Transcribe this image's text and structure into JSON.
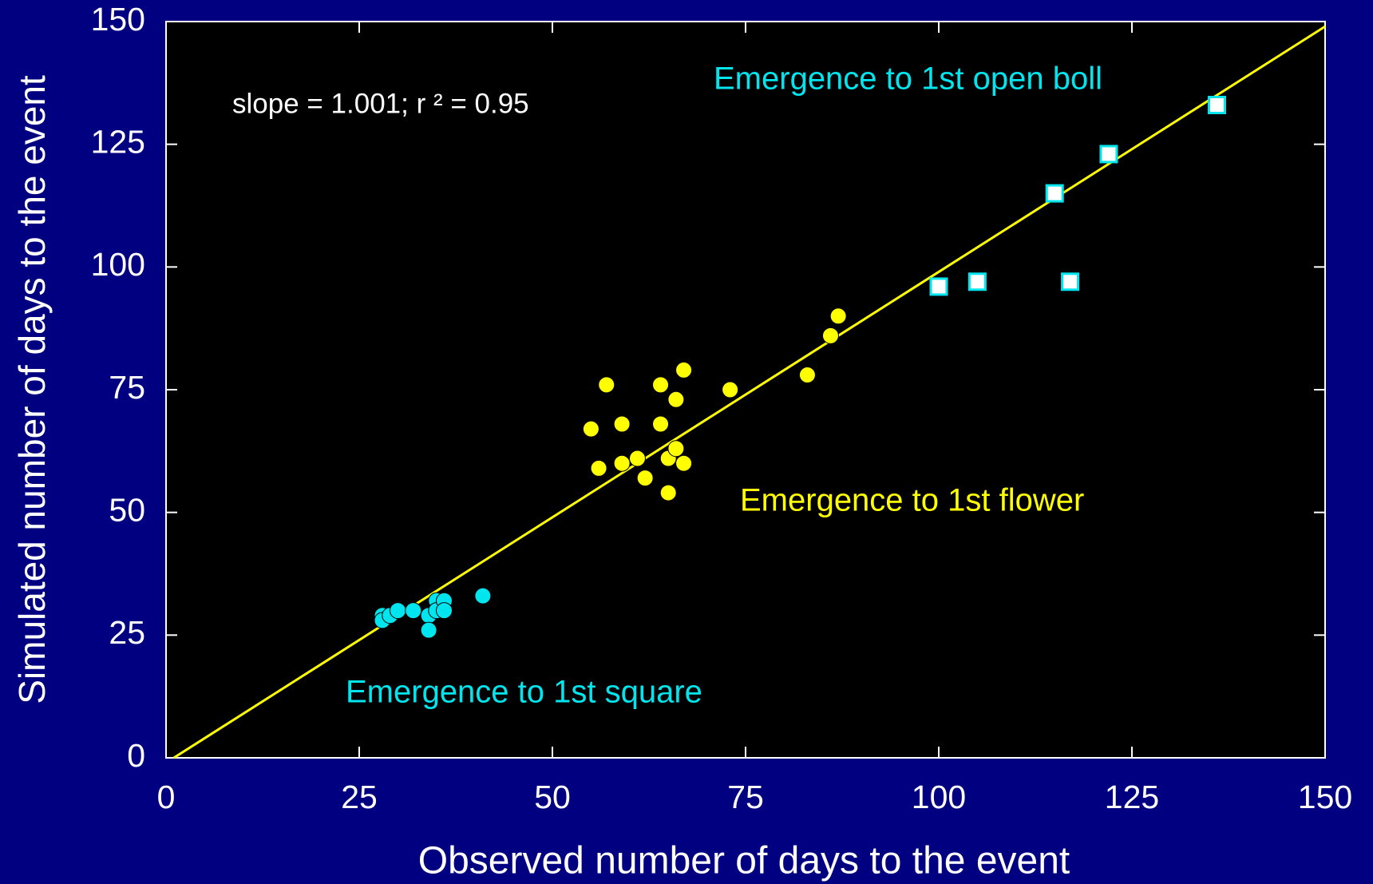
{
  "chart_data": {
    "type": "scatter",
    "xlabel": "Observed number of days to the event",
    "ylabel": "Simulated number of days to the event",
    "annotation": "slope = 1.001; r ² = 0.95",
    "xlim": [
      0,
      150
    ],
    "ylim": [
      0,
      150
    ],
    "xticks": [
      0,
      25,
      50,
      75,
      100,
      125,
      150
    ],
    "yticks": [
      0,
      25,
      50,
      75,
      100,
      125,
      150
    ],
    "fit_line": {
      "color": "#ffff00",
      "x": [
        1,
        150
      ],
      "y": [
        0,
        149
      ]
    },
    "series": [
      {
        "name": "Emergence to 1st square",
        "color": "#00e5ee",
        "marker": "circle",
        "x": [
          28,
          28,
          29,
          30,
          32,
          34,
          34,
          35,
          35,
          36,
          36,
          41
        ],
        "y": [
          29,
          28,
          29,
          30,
          30,
          29,
          26,
          32,
          30,
          32,
          30,
          33
        ]
      },
      {
        "name": "Emergence to 1st flower",
        "color": "#ffff00",
        "marker": "circle",
        "x": [
          55,
          56,
          57,
          59,
          59,
          61,
          62,
          64,
          64,
          65,
          65,
          66,
          66,
          67,
          67,
          73,
          83,
          86,
          87
        ],
        "y": [
          67,
          59,
          76,
          68,
          60,
          61,
          57,
          76,
          68,
          61,
          54,
          73,
          63,
          79,
          60,
          75,
          78,
          86,
          90
        ]
      },
      {
        "name": "Emergence to 1st open boll",
        "color": "#00e5ee",
        "marker": "square",
        "x": [
          100,
          105,
          115,
          117,
          122,
          136
        ],
        "y": [
          96,
          97,
          115,
          97,
          123,
          133
        ]
      }
    ]
  }
}
